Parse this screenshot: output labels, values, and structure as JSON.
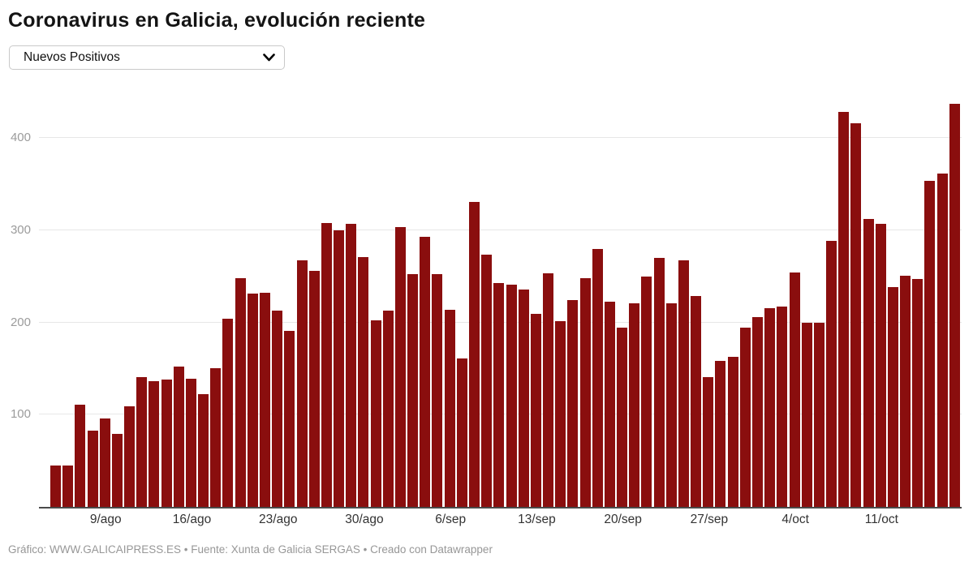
{
  "header": {
    "title": "Coronavirus en Galicia, evolución reciente",
    "metric_selector": {
      "value": "Nuevos Positivos"
    }
  },
  "footer": {
    "text": "Gráfico: WWW.GALICAIPRESS.ES • Fuente: Xunta de Galicia SERGAS • Creado con Datawrapper"
  },
  "chart_data": {
    "type": "bar",
    "title": "Coronavirus en Galicia, evolución reciente",
    "series_label": "Nuevos Positivos",
    "bar_color": "#8a0e0e",
    "grid": "horizontal",
    "legend": "none",
    "ylim": [
      0,
      457
    ],
    "y_ticks": [
      100,
      200,
      300,
      400
    ],
    "x_tick_labels": [
      "9/ago",
      "16/ago",
      "23/ago",
      "30/ago",
      "6/sep",
      "13/sep",
      "20/sep",
      "27/sep",
      "4/oct",
      "11/oct"
    ],
    "x_tick_indices": [
      4,
      11,
      18,
      25,
      32,
      39,
      46,
      53,
      60,
      67
    ],
    "x": [
      "5/ago",
      "6/ago",
      "7/ago",
      "8/ago",
      "9/ago",
      "10/ago",
      "11/ago",
      "12/ago",
      "13/ago",
      "14/ago",
      "15/ago",
      "16/ago",
      "17/ago",
      "18/ago",
      "19/ago",
      "20/ago",
      "21/ago",
      "22/ago",
      "23/ago",
      "24/ago",
      "25/ago",
      "26/ago",
      "27/ago",
      "28/ago",
      "29/ago",
      "30/ago",
      "31/ago",
      "1/sep",
      "2/sep",
      "3/sep",
      "4/sep",
      "5/sep",
      "6/sep",
      "7/sep",
      "8/sep",
      "9/sep",
      "10/sep",
      "11/sep",
      "12/sep",
      "13/sep",
      "14/sep",
      "15/sep",
      "16/sep",
      "17/sep",
      "18/sep",
      "19/sep",
      "20/sep",
      "21/sep",
      "22/sep",
      "23/sep",
      "24/sep",
      "25/sep",
      "26/sep",
      "27/sep",
      "28/sep",
      "29/sep",
      "30/sep",
      "1/oct",
      "2/oct",
      "3/oct",
      "4/oct",
      "5/oct",
      "6/oct",
      "7/oct",
      "8/oct",
      "9/oct",
      "10/oct",
      "11/oct",
      "12/oct",
      "13/oct",
      "14/oct",
      "15/oct",
      "16/oct",
      "17/oct"
    ],
    "values": [
      45,
      45,
      111,
      83,
      96,
      79,
      109,
      141,
      136,
      138,
      152,
      139,
      122,
      150,
      204,
      248,
      231,
      232,
      213,
      191,
      267,
      256,
      308,
      300,
      307,
      271,
      202,
      213,
      303,
      252,
      293,
      252,
      214,
      161,
      331,
      273,
      243,
      241,
      236,
      209,
      253,
      201,
      224,
      248,
      280,
      222,
      194,
      221,
      250,
      270,
      221,
      267,
      229,
      141,
      158,
      163,
      194,
      206,
      215,
      217,
      254,
      200,
      200,
      288,
      428,
      416,
      312,
      307,
      238,
      251,
      247,
      353,
      361,
      437
    ]
  }
}
